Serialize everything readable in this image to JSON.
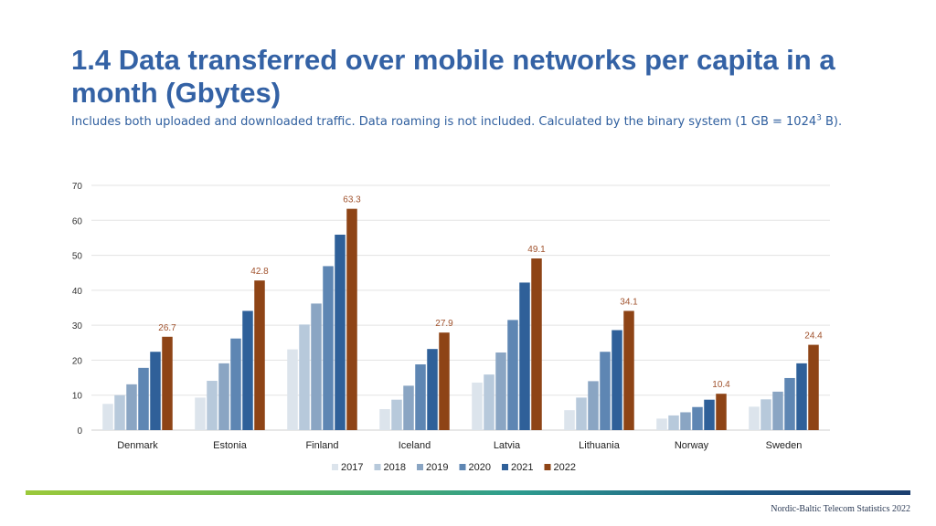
{
  "header": {
    "title": "1.4 Data transferred over mobile networks per capita in a month (Gbytes)",
    "subtitle_main": "Includes both uploaded and downloaded traffic. Data roaming is not included. Calculated by the binary system (1 GB = 1024",
    "subtitle_sup": "3",
    "subtitle_end": " B)."
  },
  "footer": {
    "text": "Nordic-Baltic Telecom Statistics 2022"
  },
  "chart_data": {
    "type": "bar",
    "categories": [
      "Denmark",
      "Estonia",
      "Finland",
      "Iceland",
      "Latvia",
      "Lithuania",
      "Norway",
      "Sweden"
    ],
    "series": [
      {
        "name": "2017",
        "color": "#DCE4EC",
        "values": [
          7.5,
          9.3,
          23.1,
          6.0,
          13.6,
          5.7,
          3.3,
          6.7
        ]
      },
      {
        "name": "2018",
        "color": "#B7C9DB",
        "values": [
          10.0,
          14.1,
          30.2,
          8.7,
          15.9,
          9.3,
          4.2,
          8.8
        ]
      },
      {
        "name": "2019",
        "color": "#8AA5C3",
        "values": [
          13.1,
          19.1,
          36.2,
          12.7,
          22.2,
          14.0,
          5.1,
          11.0
        ]
      },
      {
        "name": "2020",
        "color": "#5E86B3",
        "values": [
          17.8,
          26.2,
          46.9,
          18.8,
          31.5,
          22.4,
          6.6,
          14.9
        ]
      },
      {
        "name": "2021",
        "color": "#2F6099",
        "values": [
          22.4,
          34.1,
          55.9,
          23.2,
          42.2,
          28.6,
          8.7,
          19.1
        ]
      },
      {
        "name": "2022",
        "color": "#8E4416",
        "values": [
          26.7,
          42.8,
          63.3,
          27.9,
          49.1,
          34.1,
          10.4,
          24.4
        ]
      }
    ],
    "data_labels": {
      "series": "2022",
      "values": [
        "26.7",
        "42.8",
        "63.3",
        "27.9",
        "49.1",
        "34.1",
        "10.4",
        "24.4"
      ],
      "color": "#A0522D"
    },
    "yticks": [
      "0",
      "10",
      "20",
      "30",
      "40",
      "50",
      "60",
      "70"
    ],
    "ylim": [
      0,
      70
    ],
    "grid": true,
    "legend_position": "bottom",
    "xlabel": "",
    "ylabel": ""
  }
}
